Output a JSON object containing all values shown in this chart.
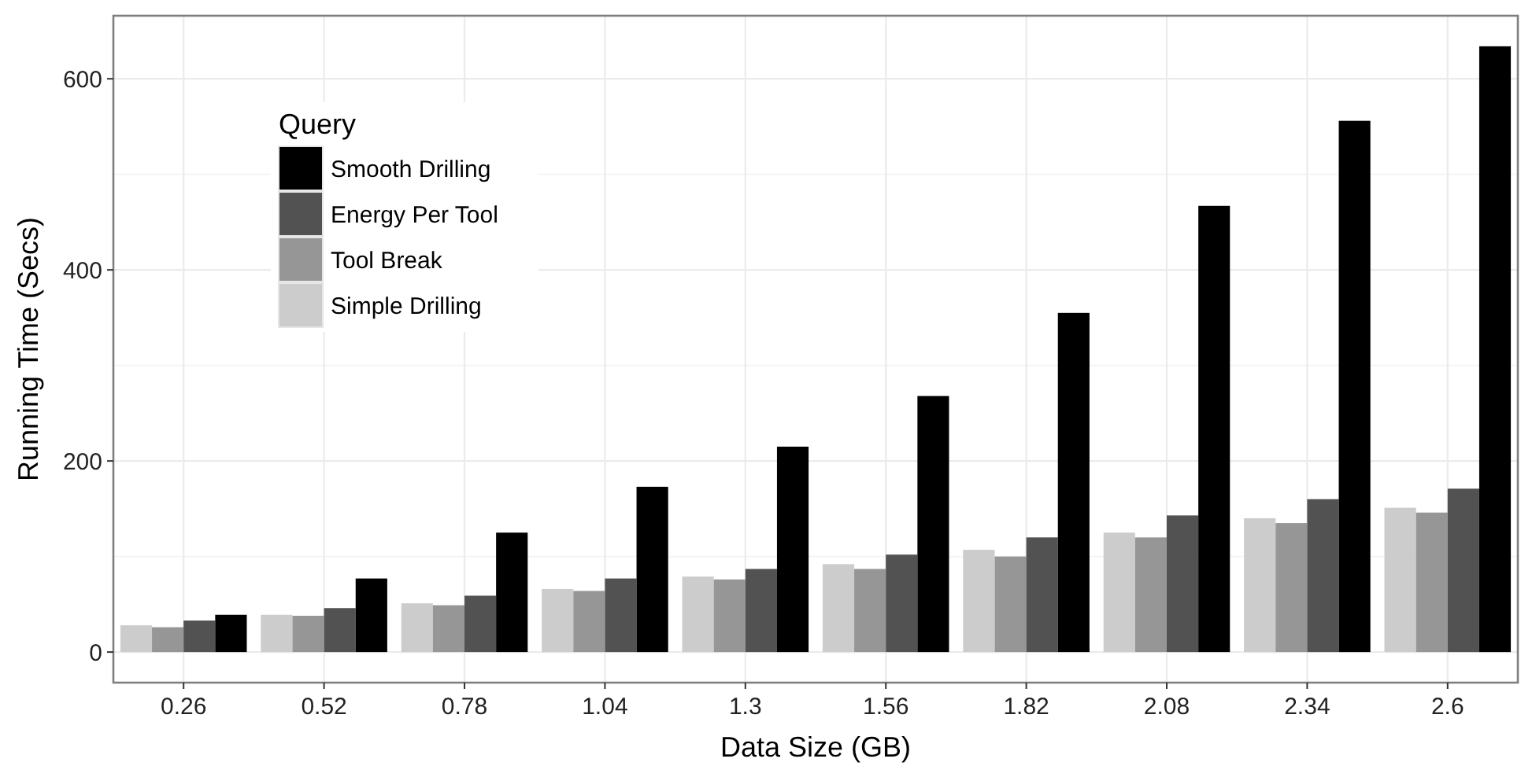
{
  "chart_data": {
    "type": "bar",
    "xlabel": "Data Size (GB)",
    "ylabel": "Running Time (Secs)",
    "legend_title": "Query",
    "categories": [
      "0.26",
      "0.52",
      "0.78",
      "1.04",
      "1.3",
      "1.56",
      "1.82",
      "2.08",
      "2.34",
      "2.6"
    ],
    "series": [
      {
        "name": "Simple Drilling",
        "color": "#cccccc",
        "values": [
          28,
          39,
          51,
          66,
          79,
          92,
          107,
          125,
          140,
          151
        ]
      },
      {
        "name": "Tool Break",
        "color": "#969696",
        "values": [
          26,
          38,
          49,
          64,
          76,
          87,
          100,
          120,
          135,
          146
        ]
      },
      {
        "name": "Energy Per Tool",
        "color": "#525252",
        "values": [
          33,
          46,
          59,
          77,
          87,
          102,
          120,
          143,
          160,
          171
        ]
      },
      {
        "name": "Smooth Drilling",
        "color": "#000000",
        "values": [
          39,
          77,
          125,
          173,
          215,
          268,
          355,
          467,
          556,
          634
        ]
      }
    ],
    "ylim": [
      -32,
      666
    ],
    "yticks": [
      0,
      200,
      400,
      600
    ],
    "grid": true,
    "legend": "top left"
  }
}
